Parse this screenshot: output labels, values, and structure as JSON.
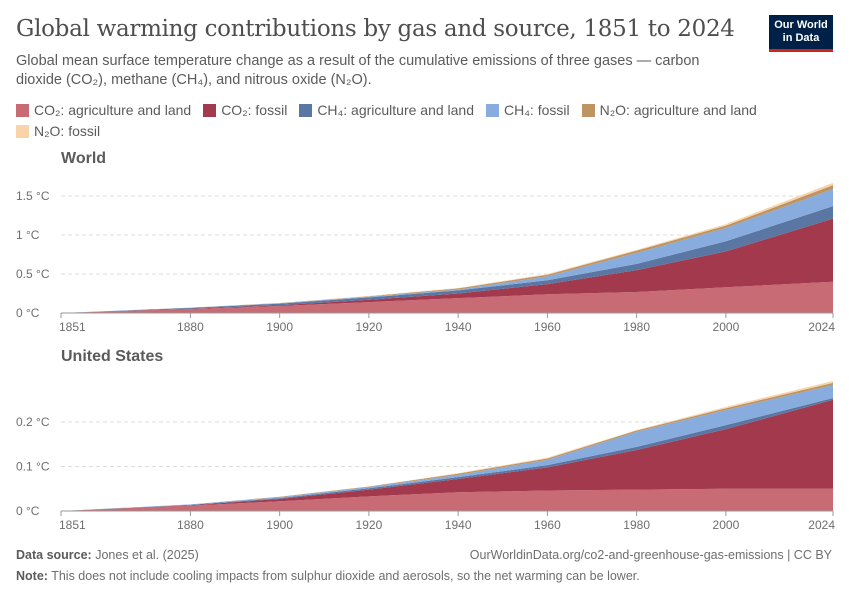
{
  "header": {
    "title": "Global warming contributions by gas and source, 1851 to 2024",
    "subtitle": "Global mean surface temperature change as a result of the cumulative emissions of three gases — carbon dioxide (CO₂), methane (CH₄), and nitrous oxide (N₂O).",
    "logo": "Our World in Data"
  },
  "footer": {
    "source_label": "Data source:",
    "source": "Jones et al. (2025)",
    "url": "OurWorldinData.org/co2-and-greenhouse-gas-emissions | CC BY",
    "note_label": "Note:",
    "note": "This does not include cooling impacts from sulphur dioxide and aerosols, so the net warming can be lower."
  },
  "chart_data": [
    {
      "type": "area",
      "stacked": true,
      "facet": "World",
      "x": [
        1851,
        1880,
        1900,
        1920,
        1940,
        1960,
        1980,
        2000,
        2024
      ],
      "xticks": [
        "1851",
        "1880",
        "1900",
        "1920",
        "1940",
        "1960",
        "1980",
        "2000",
        "2024"
      ],
      "yticks": [
        "0 °C",
        "0.5 °C",
        "1 °C",
        "1.5 °C"
      ],
      "ylim": [
        0,
        1.7
      ],
      "grid": true,
      "legend": "top",
      "series": [
        {
          "name": "CO₂: agriculture and land",
          "color": "#c86b74",
          "values": [
            0,
            0.05,
            0.09,
            0.14,
            0.19,
            0.24,
            0.27,
            0.33,
            0.4
          ]
        },
        {
          "name": "CO₂: fossil",
          "color": "#a2394c",
          "values": [
            0,
            0.005,
            0.01,
            0.03,
            0.06,
            0.13,
            0.28,
            0.46,
            0.81
          ]
        },
        {
          "name": "CH₄: agriculture and land",
          "color": "#5a76a3",
          "values": [
            0,
            0.01,
            0.02,
            0.03,
            0.04,
            0.05,
            0.08,
            0.13,
            0.16
          ]
        },
        {
          "name": "CH₄: fossil",
          "color": "#88acdd",
          "values": [
            0,
            0.002,
            0.005,
            0.01,
            0.01,
            0.05,
            0.14,
            0.17,
            0.22
          ]
        },
        {
          "name": "N₂O: agriculture and land",
          "color": "#bf9463",
          "values": [
            0,
            0.002,
            0.004,
            0.005,
            0.015,
            0.02,
            0.03,
            0.03,
            0.05
          ]
        },
        {
          "name": "N₂O: fossil",
          "color": "#f8d4a8",
          "values": [
            0,
            0,
            0,
            0.005,
            0.005,
            0.01,
            0.01,
            0.02,
            0.03
          ]
        }
      ]
    },
    {
      "type": "area",
      "stacked": true,
      "facet": "United States",
      "x": [
        1851,
        1880,
        1900,
        1920,
        1940,
        1960,
        1980,
        2000,
        2024
      ],
      "xticks": [
        "1851",
        "1880",
        "1900",
        "1920",
        "1940",
        "1960",
        "1980",
        "2000",
        "2024"
      ],
      "yticks": [
        "0 °C",
        "0.1 °C",
        "0.2 °C"
      ],
      "ylim": [
        0,
        0.29
      ],
      "grid": true,
      "series": [
        {
          "name": "CO₂: agriculture and land",
          "values": [
            0,
            0.012,
            0.022,
            0.033,
            0.042,
            0.046,
            0.048,
            0.05,
            0.05
          ]
        },
        {
          "name": "CO₂: fossil",
          "values": [
            0,
            0.001,
            0.005,
            0.015,
            0.03,
            0.052,
            0.089,
            0.134,
            0.2
          ]
        },
        {
          "name": "CH₄: agriculture and land",
          "values": [
            0,
            0.001,
            0.002,
            0.003,
            0.004,
            0.005,
            0.007,
            0.009,
            0.004
          ]
        },
        {
          "name": "CH₄: fossil",
          "values": [
            0,
            0.001,
            0.002,
            0.003,
            0.005,
            0.012,
            0.034,
            0.034,
            0.029
          ]
        },
        {
          "name": "N₂O: agriculture and land",
          "values": [
            0,
            0,
            0.001,
            0.001,
            0.003,
            0.003,
            0.003,
            0.004,
            0.005
          ]
        },
        {
          "name": "N₂O: fossil",
          "values": [
            0,
            0,
            0,
            0,
            0.001,
            0.002,
            0.001,
            0.003,
            0.004
          ]
        }
      ]
    }
  ]
}
